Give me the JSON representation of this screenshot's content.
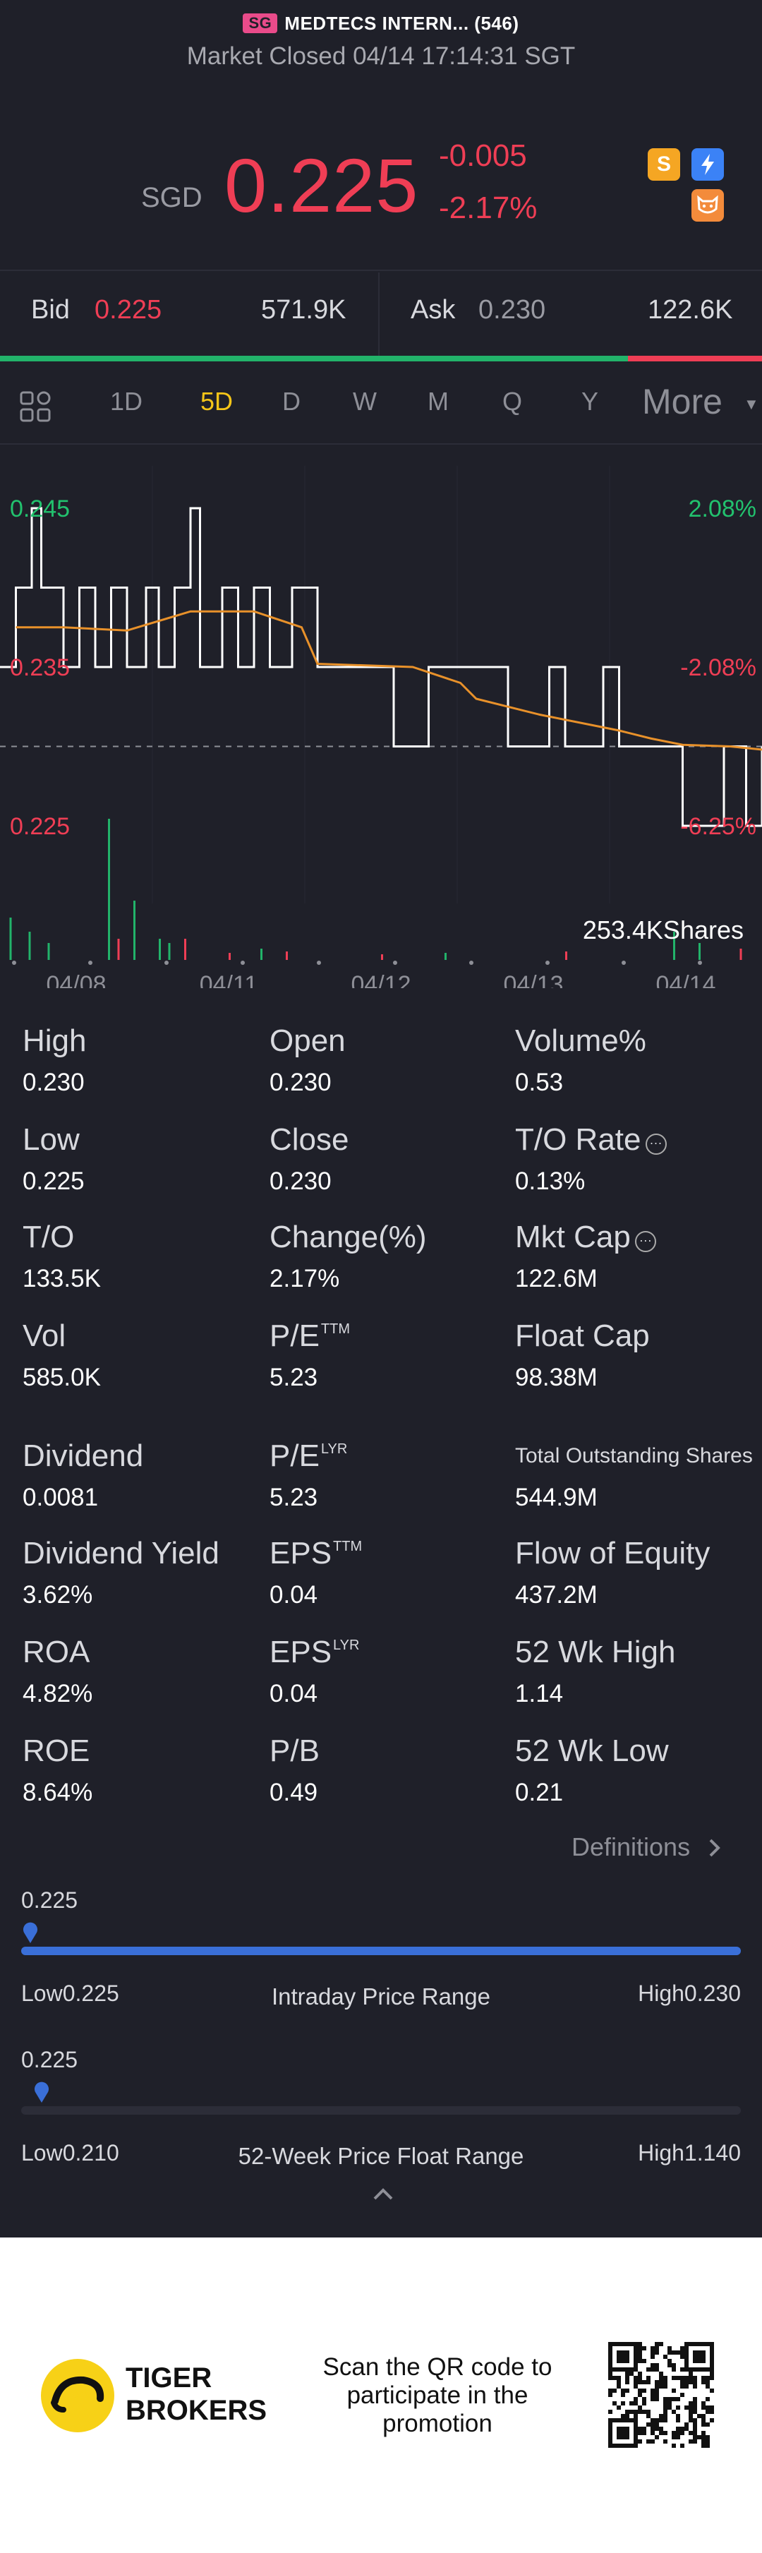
{
  "header": {
    "region_badge": "SG",
    "title": "MEDTECS INTERN... (546)",
    "status": "Market Closed 04/14 17:14:31 SGT"
  },
  "quote": {
    "currency": "SGD",
    "price": "0.225",
    "change": "-0.005",
    "change_pct": "-2.17%",
    "icons": [
      "s-badge-icon",
      "lightning-icon",
      "tiger-face-icon"
    ]
  },
  "orderbook": {
    "bid_label": "Bid",
    "bid_price": "0.225",
    "bid_size": "571.9K",
    "ask_label": "Ask",
    "ask_price": "0.230",
    "ask_size": "122.6K",
    "bid_ratio": 0.824
  },
  "period_tabs": {
    "items": [
      "1D",
      "5D",
      "D",
      "W",
      "M",
      "Q",
      "Y"
    ],
    "active": "5D",
    "more_label": "More"
  },
  "chart_data": {
    "type": "line",
    "y_left_ticks": [
      "0.245",
      "0.235",
      "0.225"
    ],
    "y_right_ticks": [
      "2.08%",
      "-2.08%",
      "-6.25%"
    ],
    "x_ticks": [
      "04/08",
      "04/11",
      "04/12",
      "04/13",
      "04/14"
    ],
    "ylim": [
      0.225,
      0.245
    ],
    "prev_close": 0.23,
    "volume_label": "253.4KShares",
    "colors": {
      "price_line": "#ffffff",
      "avg_line": "#e8912a",
      "up": "#22b36a",
      "down": "#ef3e55",
      "positive_tick": "#22c26e",
      "negative_tick": "#ef3e55"
    },
    "price_series": [
      [
        0.0,
        0.235
      ],
      [
        0.5,
        0.24
      ],
      [
        0.8,
        0.24
      ],
      [
        1.0,
        0.245
      ],
      [
        1.3,
        0.24
      ],
      [
        1.8,
        0.24
      ],
      [
        2.0,
        0.235
      ],
      [
        2.5,
        0.24
      ],
      [
        3.0,
        0.235
      ],
      [
        3.5,
        0.24
      ],
      [
        4.0,
        0.235
      ],
      [
        4.6,
        0.24
      ],
      [
        5.0,
        0.235
      ],
      [
        5.5,
        0.24
      ],
      [
        6.0,
        0.245
      ],
      [
        6.3,
        0.235
      ],
      [
        7.0,
        0.24
      ],
      [
        7.5,
        0.235
      ],
      [
        8.0,
        0.24
      ],
      [
        8.5,
        0.235
      ],
      [
        9.2,
        0.24
      ],
      [
        10.0,
        0.235
      ],
      [
        11.0,
        0.235
      ],
      [
        12.0,
        0.235
      ],
      [
        12.4,
        0.23
      ],
      [
        13.0,
        0.23
      ],
      [
        13.5,
        0.235
      ],
      [
        14.0,
        0.235
      ],
      [
        15.5,
        0.235
      ],
      [
        16.0,
        0.23
      ],
      [
        17.0,
        0.23
      ],
      [
        17.3,
        0.235
      ],
      [
        17.8,
        0.23
      ],
      [
        18.5,
        0.23
      ],
      [
        19.0,
        0.235
      ],
      [
        19.5,
        0.23
      ],
      [
        21.0,
        0.23
      ],
      [
        21.5,
        0.225
      ],
      [
        22.5,
        0.225
      ],
      [
        22.8,
        0.23
      ],
      [
        23.2,
        0.23
      ],
      [
        23.5,
        0.225
      ],
      [
        24.0,
        0.23
      ]
    ],
    "avg_series": [
      [
        0.5,
        0.2375
      ],
      [
        2.0,
        0.2375
      ],
      [
        4.0,
        0.2373
      ],
      [
        6.0,
        0.2385
      ],
      [
        8.0,
        0.2385
      ],
      [
        9.5,
        0.2375
      ],
      [
        10.0,
        0.2352
      ],
      [
        13.0,
        0.235
      ],
      [
        14.5,
        0.234
      ],
      [
        15.0,
        0.233
      ],
      [
        17.0,
        0.232
      ],
      [
        19.5,
        0.231
      ],
      [
        20.5,
        0.2305
      ],
      [
        21.5,
        0.2301
      ],
      [
        23.0,
        0.23
      ],
      [
        24.0,
        0.2298
      ]
    ],
    "volume_bars": [
      {
        "x": 0.3,
        "v": 30,
        "c": "#22b36a"
      },
      {
        "x": 0.9,
        "v": 20,
        "c": "#22b36a"
      },
      {
        "x": 1.5,
        "v": 12,
        "c": "#22b36a"
      },
      {
        "x": 3.4,
        "v": 100,
        "c": "#22b36a"
      },
      {
        "x": 3.7,
        "v": 15,
        "c": "#ef3e55"
      },
      {
        "x": 4.2,
        "v": 42,
        "c": "#22b36a"
      },
      {
        "x": 5.0,
        "v": 15,
        "c": "#22b36a"
      },
      {
        "x": 5.3,
        "v": 12,
        "c": "#22b36a"
      },
      {
        "x": 5.8,
        "v": 15,
        "c": "#ef3e55"
      },
      {
        "x": 7.2,
        "v": 5,
        "c": "#ef3e55"
      },
      {
        "x": 8.2,
        "v": 8,
        "c": "#22b36a"
      },
      {
        "x": 9.0,
        "v": 6,
        "c": "#ef3e55"
      },
      {
        "x": 12.0,
        "v": 4,
        "c": "#ef3e55"
      },
      {
        "x": 14.0,
        "v": 5,
        "c": "#22b36a"
      },
      {
        "x": 17.8,
        "v": 6,
        "c": "#ef3e55"
      },
      {
        "x": 21.2,
        "v": 20,
        "c": "#22b36a"
      },
      {
        "x": 22.0,
        "v": 12,
        "c": "#22b36a"
      },
      {
        "x": 23.3,
        "v": 8,
        "c": "#ef3e55"
      }
    ],
    "x_max": 24,
    "vol_max": 100
  },
  "stats": [
    {
      "label": "High",
      "value": "0.230"
    },
    {
      "label": "Open",
      "value": "0.230"
    },
    {
      "label": "Volume%",
      "value": "0.53"
    },
    {
      "label": "Low",
      "value": "0.225"
    },
    {
      "label": "Close",
      "value": "0.230"
    },
    {
      "label": "T/O Rate",
      "value": "0.13%"
    },
    {
      "label": "T/O",
      "value": "133.5K"
    },
    {
      "label": "Change(%)",
      "value": "2.17%"
    },
    {
      "label": "Mkt Cap",
      "value": "122.6M"
    },
    {
      "label": "Vol",
      "value": "585.0K"
    },
    {
      "label": "P/E",
      "sup": "TTM",
      "value": "5.23"
    },
    {
      "label": "Float Cap",
      "value": "98.38M"
    },
    {
      "label": "Dividend",
      "value": "0.0081"
    },
    {
      "label": "P/E",
      "sup": "LYR",
      "value": "5.23"
    },
    {
      "label": "Total Outstanding Shares",
      "value": "544.9M"
    },
    {
      "label": "Dividend Yield",
      "value": "3.62%"
    },
    {
      "label": "EPS",
      "sup": "TTM",
      "value": "0.04"
    },
    {
      "label": "Flow of Equity",
      "value": "437.2M"
    },
    {
      "label": "ROA",
      "value": "4.82%"
    },
    {
      "label": "EPS",
      "sup": "LYR",
      "value": "0.04"
    },
    {
      "label": "52 Wk High",
      "value": "1.14"
    },
    {
      "label": "ROE",
      "value": "8.64%"
    },
    {
      "label": "P/B",
      "value": "0.49"
    },
    {
      "label": "52 Wk Low",
      "value": "0.21"
    }
  ],
  "definitions_label": "Definitions",
  "intraday_range": {
    "current": "0.225",
    "low_label": "Low0.225",
    "high_label": "High0.230",
    "title": "Intraday Price Range",
    "position": 0.0,
    "track_color": "#3a6fd8"
  },
  "week52_range": {
    "current": "0.225",
    "low_label": "Low0.210",
    "high_label": "High1.140",
    "title": "52-Week Price Float Range",
    "position": 0.016,
    "track_color": "#2c2d38"
  },
  "footer": {
    "brand_line1": "TIGER",
    "brand_line2": "BROKERS",
    "promo_line1": "Scan the QR code to",
    "promo_line2": "participate in the",
    "promo_line3": "promotion"
  }
}
